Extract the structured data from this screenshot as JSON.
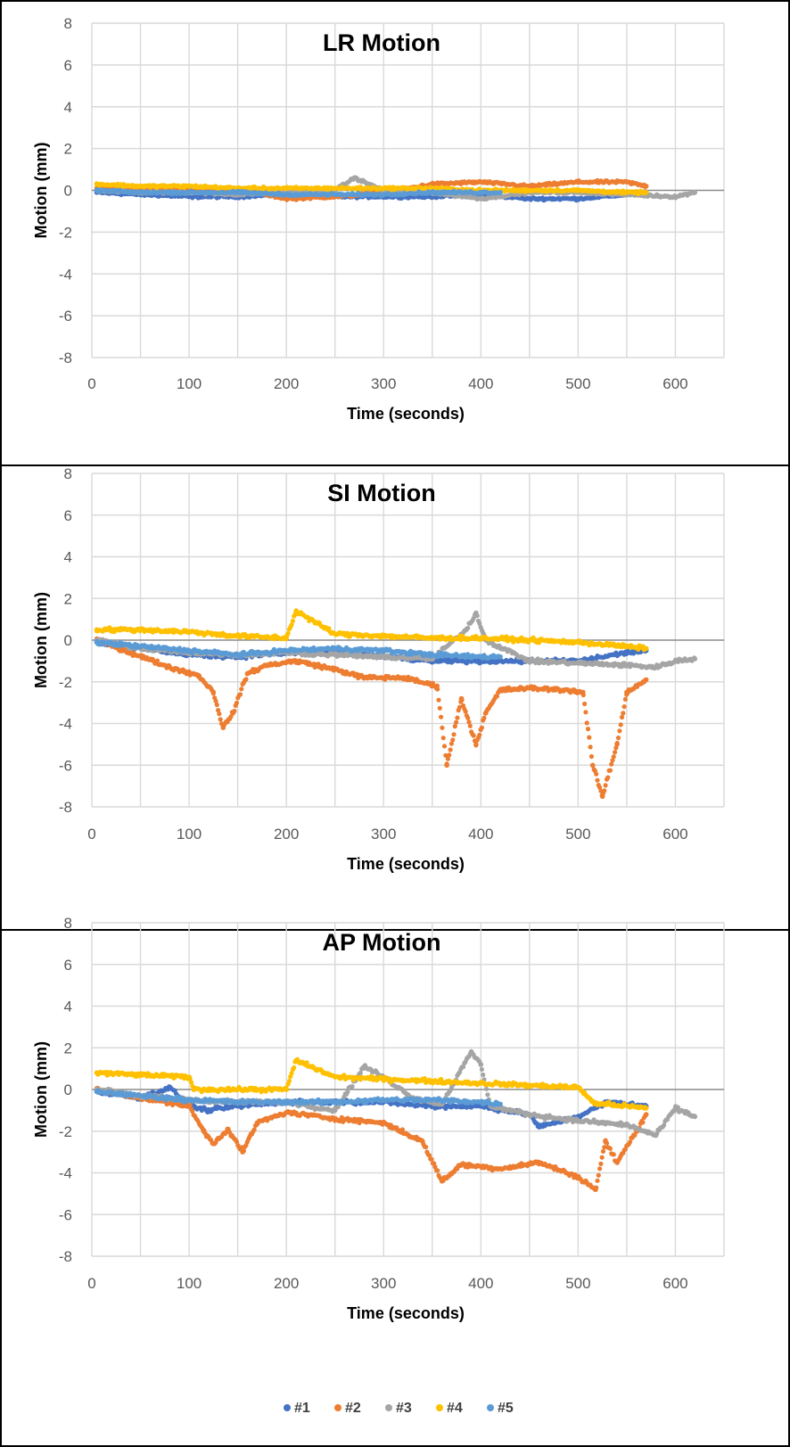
{
  "colors": {
    "s1": "#4472c4",
    "s2": "#ed7d31",
    "s3": "#a5a5a5",
    "s4": "#ffc000",
    "s5": "#5b9bd5"
  },
  "legend": [
    "#1",
    "#2",
    "#3",
    "#4",
    "#5"
  ],
  "chart_data": [
    {
      "type": "scatter",
      "title": "LR Motion",
      "xlabel": "Time (seconds)",
      "ylabel": "Motion (mm)",
      "xlim": [
        0,
        650
      ],
      "ylim": [
        -8,
        8
      ],
      "xticks": [
        "0",
        "100",
        "200",
        "300",
        "400",
        "500",
        "600"
      ],
      "yticks": [
        "8",
        "6",
        "4",
        "2",
        "0",
        "-2",
        "-4",
        "-6",
        "-8"
      ],
      "series": [
        {
          "name": "#1",
          "x": [
            5,
            50,
            100,
            150,
            200,
            250,
            300,
            350,
            400,
            450,
            500,
            550,
            570
          ],
          "y": [
            -0.1,
            -0.2,
            -0.3,
            -0.3,
            -0.2,
            -0.3,
            -0.3,
            -0.3,
            -0.2,
            -0.4,
            -0.4,
            -0.2,
            -0.1
          ]
        },
        {
          "name": "#2",
          "x": [
            5,
            50,
            100,
            150,
            200,
            250,
            300,
            350,
            400,
            450,
            500,
            550,
            570
          ],
          "y": [
            0.1,
            0.0,
            0.0,
            0.1,
            -0.4,
            -0.3,
            -0.1,
            0.3,
            0.4,
            0.2,
            0.4,
            0.4,
            0.2
          ]
        },
        {
          "name": "#3",
          "x": [
            5,
            50,
            100,
            150,
            200,
            250,
            270,
            300,
            350,
            400,
            450,
            500,
            550,
            600,
            620
          ],
          "y": [
            0.0,
            -0.1,
            -0.1,
            -0.2,
            -0.1,
            0.0,
            0.6,
            0.0,
            -0.1,
            -0.4,
            -0.1,
            -0.1,
            -0.2,
            -0.3,
            -0.1
          ]
        },
        {
          "name": "#4",
          "x": [
            5,
            50,
            100,
            150,
            200,
            250,
            300,
            350,
            400,
            450,
            500,
            550,
            570
          ],
          "y": [
            0.3,
            0.2,
            0.2,
            0.1,
            0.1,
            0.1,
            0.1,
            0.1,
            0.0,
            0.0,
            0.0,
            -0.1,
            -0.1
          ]
        },
        {
          "name": "#5",
          "x": [
            5,
            50,
            100,
            150,
            200,
            250,
            300,
            350,
            400,
            420
          ],
          "y": [
            0.0,
            -0.1,
            -0.1,
            -0.1,
            -0.2,
            -0.2,
            -0.2,
            -0.1,
            -0.1,
            -0.1
          ]
        }
      ]
    },
    {
      "type": "scatter",
      "title": "SI Motion",
      "xlabel": "Time (seconds)",
      "ylabel": "Motion (mm)",
      "xlim": [
        0,
        650
      ],
      "ylim": [
        -8,
        8
      ],
      "xticks": [
        "0",
        "100",
        "200",
        "300",
        "400",
        "500",
        "600"
      ],
      "yticks": [
        "8",
        "6",
        "4",
        "2",
        "0",
        "-2",
        "-4",
        "-6",
        "-8"
      ],
      "series": [
        {
          "name": "#1",
          "x": [
            5,
            50,
            100,
            150,
            200,
            250,
            300,
            350,
            400,
            450,
            500,
            550,
            570
          ],
          "y": [
            -0.1,
            -0.4,
            -0.7,
            -0.8,
            -0.6,
            -0.6,
            -0.8,
            -1.0,
            -1.0,
            -1.0,
            -1.0,
            -0.6,
            -0.5
          ]
        },
        {
          "name": "#2",
          "x": [
            5,
            40,
            80,
            110,
            125,
            135,
            145,
            160,
            180,
            210,
            250,
            280,
            320,
            355,
            365,
            380,
            395,
            405,
            420,
            450,
            490,
            505,
            515,
            525,
            540,
            550,
            570
          ],
          "y": [
            0.0,
            -0.6,
            -1.3,
            -1.7,
            -2.5,
            -4.2,
            -3.5,
            -1.6,
            -1.2,
            -1.0,
            -1.4,
            -1.8,
            -1.8,
            -2.2,
            -6.0,
            -2.8,
            -5.0,
            -3.5,
            -2.4,
            -2.3,
            -2.4,
            -2.5,
            -6.0,
            -7.5,
            -5.0,
            -2.5,
            -1.9
          ]
        },
        {
          "name": "#3",
          "x": [
            5,
            50,
            100,
            150,
            200,
            250,
            300,
            350,
            385,
            395,
            405,
            450,
            500,
            550,
            580,
            600,
            620
          ],
          "y": [
            0.0,
            -0.4,
            -0.6,
            -0.7,
            -0.6,
            -0.7,
            -0.8,
            -0.9,
            0.5,
            1.3,
            0.0,
            -1.0,
            -1.1,
            -1.2,
            -1.3,
            -1.0,
            -0.9
          ]
        },
        {
          "name": "#4",
          "x": [
            5,
            50,
            100,
            150,
            200,
            210,
            250,
            300,
            350,
            400,
            450,
            500,
            550,
            570
          ],
          "y": [
            0.5,
            0.5,
            0.4,
            0.2,
            0.1,
            1.4,
            0.3,
            0.2,
            0.1,
            0.1,
            0.0,
            -0.1,
            -0.3,
            -0.4
          ]
        },
        {
          "name": "#5",
          "x": [
            5,
            50,
            100,
            150,
            200,
            250,
            300,
            350,
            400,
            420
          ],
          "y": [
            -0.1,
            -0.3,
            -0.5,
            -0.7,
            -0.5,
            -0.4,
            -0.5,
            -0.7,
            -0.8,
            -0.8
          ]
        }
      ]
    },
    {
      "type": "scatter",
      "title": "AP Motion",
      "xlabel": "Time (seconds)",
      "ylabel": "Motion (mm)",
      "xlim": [
        0,
        650
      ],
      "ylim": [
        -8,
        8
      ],
      "xticks": [
        "0",
        "100",
        "200",
        "300",
        "400",
        "500",
        "600"
      ],
      "yticks": [
        "8",
        "6",
        "4",
        "2",
        "0",
        "-2",
        "-4",
        "-6",
        "-8"
      ],
      "series": [
        {
          "name": "#1",
          "x": [
            5,
            50,
            80,
            100,
            120,
            150,
            200,
            250,
            300,
            350,
            400,
            450,
            460,
            500,
            530,
            570
          ],
          "y": [
            -0.1,
            -0.4,
            0.1,
            -0.8,
            -1.0,
            -0.8,
            -0.6,
            -0.6,
            -0.6,
            -0.8,
            -0.8,
            -1.2,
            -1.8,
            -1.3,
            -0.6,
            -0.8
          ]
        },
        {
          "name": "#2",
          "x": [
            5,
            50,
            100,
            115,
            125,
            140,
            155,
            170,
            200,
            250,
            300,
            340,
            360,
            380,
            420,
            460,
            500,
            518,
            528,
            540,
            560,
            570
          ],
          "y": [
            0.0,
            -0.4,
            -0.8,
            -2.0,
            -2.6,
            -1.9,
            -3.0,
            -1.6,
            -1.1,
            -1.4,
            -1.6,
            -2.5,
            -4.4,
            -3.6,
            -3.8,
            -3.5,
            -4.2,
            -4.8,
            -2.5,
            -3.5,
            -2.0,
            -1.2
          ]
        },
        {
          "name": "#3",
          "x": [
            5,
            50,
            100,
            150,
            200,
            250,
            280,
            300,
            330,
            360,
            390,
            400,
            410,
            450,
            500,
            550,
            580,
            600,
            620
          ],
          "y": [
            0.0,
            -0.3,
            -0.5,
            -0.6,
            -0.6,
            -1.0,
            1.1,
            0.6,
            -0.4,
            -0.7,
            1.8,
            1.2,
            -0.8,
            -1.2,
            -1.5,
            -1.7,
            -2.2,
            -0.9,
            -1.3
          ]
        },
        {
          "name": "#4",
          "x": [
            5,
            50,
            100,
            105,
            150,
            200,
            210,
            250,
            300,
            350,
            400,
            450,
            500,
            518,
            530,
            570
          ],
          "y": [
            0.8,
            0.7,
            0.6,
            0.0,
            0.0,
            0.0,
            1.4,
            0.6,
            0.5,
            0.4,
            0.3,
            0.2,
            0.1,
            -0.7,
            -0.7,
            -0.9
          ]
        },
        {
          "name": "#5",
          "x": [
            5,
            50,
            100,
            150,
            200,
            250,
            300,
            350,
            400,
            420
          ],
          "y": [
            -0.1,
            -0.3,
            -0.5,
            -0.6,
            -0.6,
            -0.6,
            -0.5,
            -0.5,
            -0.6,
            -0.7
          ]
        }
      ]
    }
  ]
}
